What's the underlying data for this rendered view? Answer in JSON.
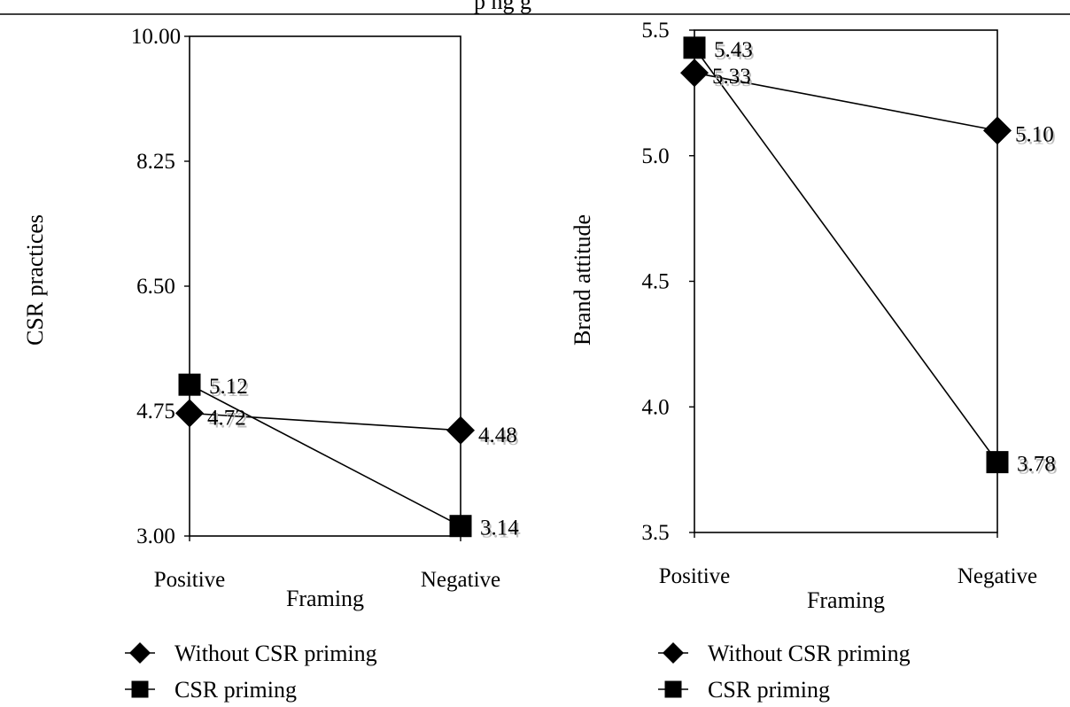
{
  "header_fragment": "p    ng      g",
  "chart_data": [
    {
      "type": "line",
      "categories": [
        "Positive",
        "Negative"
      ],
      "xlabel": "Framing",
      "ylabel": "CSR practices",
      "ylim": [
        3.0,
        10.0
      ],
      "yticks": [
        "3.00",
        "4.75",
        "6.50",
        "8.25",
        "10.00"
      ],
      "legend_position": "bottom",
      "series": [
        {
          "name": "Without CSR priming",
          "marker": "diamond",
          "values": [
            4.72,
            4.48
          ],
          "labels": [
            "4.72",
            "4.48"
          ]
        },
        {
          "name": "CSR priming",
          "marker": "square",
          "values": [
            5.12,
            3.14
          ],
          "labels": [
            "5.12",
            "3.14"
          ]
        }
      ]
    },
    {
      "type": "line",
      "categories": [
        "Positive",
        "Negative"
      ],
      "xlabel": "Framing",
      "ylabel": "Brand attitude",
      "ylim": [
        3.5,
        5.5
      ],
      "yticks": [
        "3.5",
        "4.0",
        "4.5",
        "5.0",
        "5.5"
      ],
      "legend_position": "bottom",
      "series": [
        {
          "name": "Without CSR priming",
          "marker": "diamond",
          "values": [
            5.33,
            5.1
          ],
          "labels": [
            "5.33",
            "5.10"
          ]
        },
        {
          "name": "CSR priming",
          "marker": "square",
          "values": [
            5.43,
            3.78
          ],
          "labels": [
            "5.43",
            "3.78"
          ]
        }
      ]
    }
  ]
}
